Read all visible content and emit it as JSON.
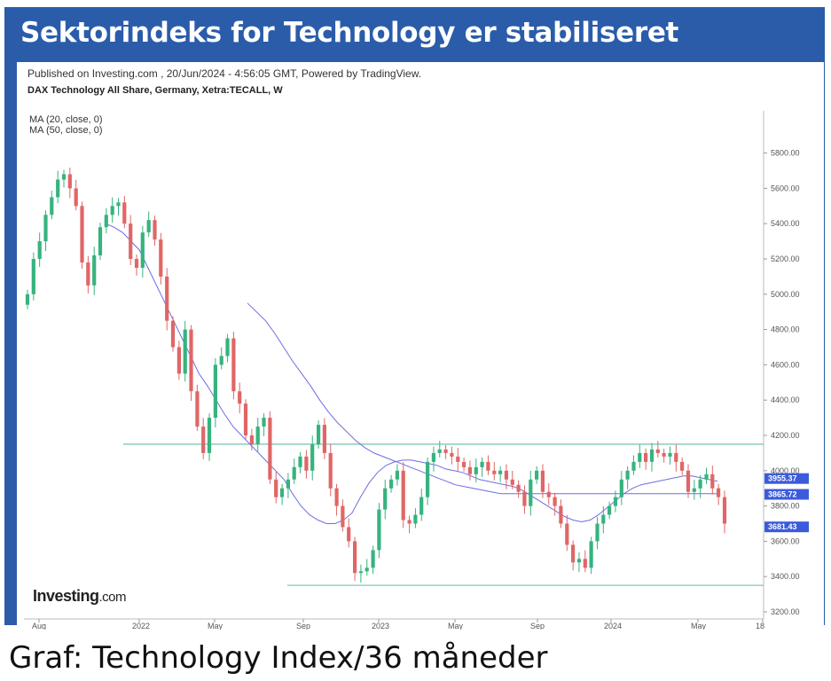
{
  "banner": {
    "title": "Sektorindeks for Technology er stabiliseret"
  },
  "caption": {
    "text": "Graf: Technology Index/36 måneder"
  },
  "chart_header": {
    "published": "Published on Investing.com , 20/Jun/2024 - 4:56:05 GMT, Powered by TradingView.",
    "symbol": "DAX Technology All Share, Germany, Xetra:TECALL, W",
    "ma20": "MA (20, close, 0)",
    "ma50": "MA (50, close, 0)",
    "logo_main": "Investing",
    "logo_suffix": ".com"
  },
  "colors": {
    "frame": "#2a5caa",
    "up": "#36b37e",
    "down": "#e06666",
    "ma": "#6d6de3",
    "level": "#7fc9b8",
    "tag": "#3b5bdb"
  },
  "chart_data": {
    "type": "candlestick",
    "title": "",
    "ylim": [
      3200,
      5900
    ],
    "y_ticks": [
      "5800.00",
      "5600.00",
      "5400.00",
      "5200.00",
      "5000.00",
      "4800.00",
      "4600.00",
      "4400.00",
      "4200.00",
      "4000.00",
      "3800.00",
      "3600.00",
      "3400.00",
      "3200.00"
    ],
    "x_ticks": [
      "Aug",
      "2022",
      "May",
      "Sep",
      "2023",
      "May",
      "Sep",
      "2024",
      "May",
      "18"
    ],
    "grid": false,
    "horizontal_levels": [
      4150,
      3350
    ],
    "price_tags": [
      {
        "label": "3955.37",
        "value": 3955.37
      },
      {
        "label": "3865.72",
        "value": 3865.72
      },
      {
        "label": "3681.43",
        "value": 3681.43
      }
    ],
    "ma_labels": [
      "MA (20, close, 0)",
      "MA (50, close, 0)"
    ],
    "series": [
      {
        "name": "close",
        "values": [
          5000,
          5200,
          5300,
          5450,
          5550,
          5650,
          5680,
          5600,
          5500,
          5180,
          5050,
          5220,
          5380,
          5450,
          5500,
          5520,
          5400,
          5200,
          5150,
          5350,
          5420,
          5310,
          5100,
          4850,
          4700,
          4550,
          4800,
          4450,
          4250,
          4100,
          4300,
          4600,
          4650,
          4750,
          4450,
          4380,
          4200,
          4150,
          4250,
          4300,
          3950,
          3850,
          3900,
          3950,
          4020,
          4080,
          4000,
          4150,
          4260,
          4100,
          3900,
          3800,
          3680,
          3600,
          3420,
          3430,
          3450,
          3550,
          3780,
          3900,
          3950,
          4000,
          3720,
          3700,
          3750,
          3850,
          4050,
          4100,
          4120,
          4100,
          4080,
          4050,
          4020,
          3980,
          4020,
          4050,
          4000,
          3980,
          4000,
          3950,
          3920,
          3880,
          3800,
          3950,
          4000,
          3880,
          3850,
          3800,
          3700,
          3580,
          3480,
          3500,
          3450,
          3600,
          3700,
          3750,
          3800,
          3850,
          3950,
          4000,
          4050,
          4100,
          4050,
          4120,
          4100,
          4080,
          4100,
          4050,
          4000,
          3880,
          3900,
          3950,
          3980,
          3900,
          3850,
          3700
        ]
      },
      {
        "name": "MA (20, close, 0)",
        "values": [
          5400,
          5380,
          5350,
          5300,
          5250,
          5150,
          5050,
          4950,
          4850,
          4750,
          4650,
          4550,
          4480,
          4400,
          4320,
          4250,
          4200,
          4150,
          4100,
          4050,
          4000,
          3950,
          3870,
          3800,
          3750,
          3720,
          3700,
          3700,
          3720,
          3760,
          3850,
          3930,
          3990,
          4030,
          4050,
          4060,
          4060,
          4050,
          4040,
          4030,
          4010,
          4000,
          3990,
          3970,
          3950,
          3940,
          3930,
          3920,
          3910,
          3890,
          3860,
          3830,
          3800,
          3770,
          3740,
          3720,
          3710,
          3720,
          3750,
          3790,
          3830,
          3870,
          3900,
          3920,
          3930,
          3940,
          3950,
          3960,
          3970,
          3970,
          3960,
          3950,
          3940
        ]
      },
      {
        "name": "MA (50, close, 0)",
        "values": [
          4950,
          4900,
          4850,
          4780,
          4700,
          4620,
          4550,
          4480,
          4400,
          4330,
          4270,
          4220,
          4170,
          4130,
          4100,
          4080,
          4060,
          4040,
          4020,
          4000,
          3980,
          3960,
          3940,
          3920,
          3910,
          3900,
          3890,
          3880,
          3870,
          3870,
          3870,
          3870,
          3870,
          3870,
          3870,
          3870,
          3870,
          3870,
          3870,
          3870,
          3870,
          3870,
          3870,
          3870,
          3870,
          3870,
          3870,
          3870,
          3870,
          3870,
          3870,
          3870,
          3870
        ]
      }
    ]
  }
}
